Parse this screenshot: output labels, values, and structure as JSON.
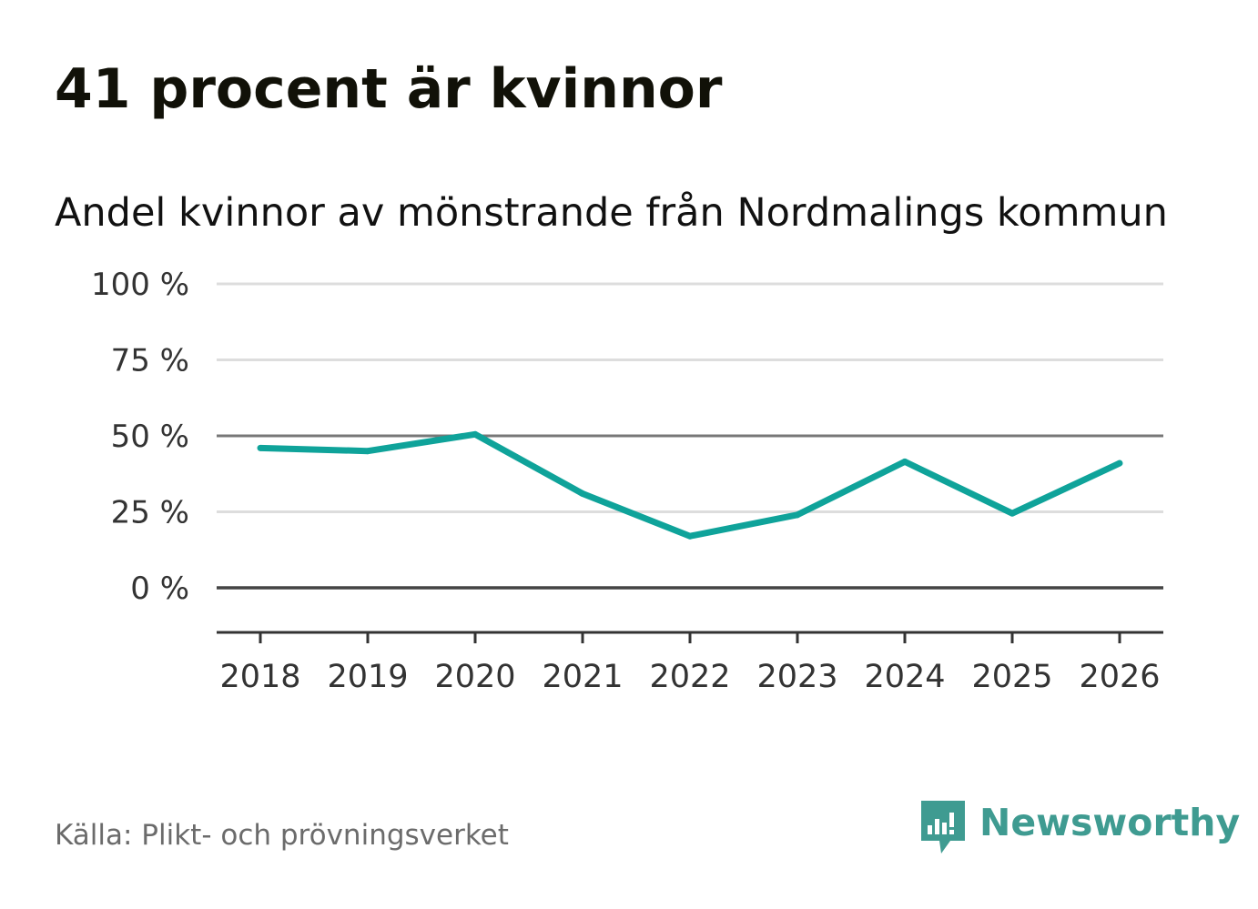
{
  "title": "41 procent är kvinnor",
  "subtitle": "Andel kvinnor av mönstrande från Nordmalings kommun",
  "source": "Källa: Plikt- och prövningsverket",
  "brand": {
    "name": "Newsworthy",
    "icon": "newsworthy-logo-icon",
    "color": "#3f9b91"
  },
  "colors": {
    "line": "#0fa39a",
    "grid": "#dddddd",
    "reference": "#777777",
    "zero": "#444444",
    "axis": "#333333",
    "tick_text": "#333333"
  },
  "chart_data": {
    "type": "line",
    "title": "41 procent är kvinnor",
    "subtitle": "Andel kvinnor av mönstrande från Nordmalings kommun",
    "xlabel": "",
    "ylabel": "",
    "categories": [
      "2018",
      "2019",
      "2020",
      "2021",
      "2022",
      "2023",
      "2024",
      "2025",
      "2026"
    ],
    "series": [
      {
        "name": "Andel kvinnor",
        "values": [
          46,
          45,
          50.5,
          31,
          17,
          24,
          41.5,
          24.5,
          41
        ]
      }
    ],
    "ylim": [
      -15,
      100
    ],
    "yticks": [
      0,
      25,
      50,
      75,
      100
    ],
    "ytick_labels": [
      "0 %",
      "25 %",
      "50 %",
      "75 %",
      "100 %"
    ],
    "reference_line": 50,
    "grid": true,
    "legend": "none"
  }
}
